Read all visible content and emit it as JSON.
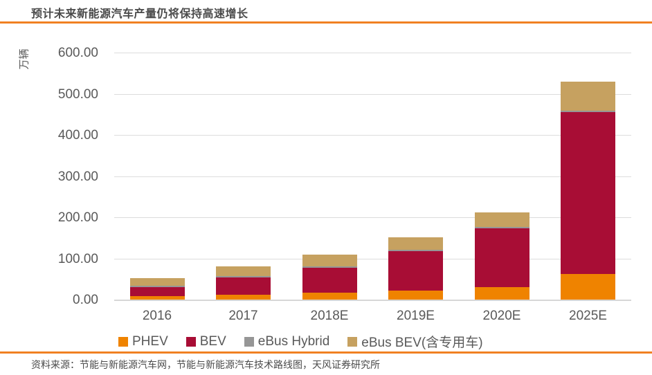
{
  "header": {
    "title": "预计未来新能源汽车产量仍将保持高速增长"
  },
  "footer": {
    "source": "资料来源：节能与新能源汽车网，节能与新能源汽车技术路线图，天风证券研究所"
  },
  "colors": {
    "accent_rule": "#f08122",
    "phev": "#ef8300",
    "bev": "#a80d35",
    "ebus_hybrid": "#969696",
    "ebus_bev": "#c6a160",
    "axis_text": "#595959",
    "gridline": "#dcdcdc"
  },
  "chart_data": {
    "type": "bar",
    "stacked": true,
    "title": "预计未来新能源汽车产量仍将保持高速增长",
    "ylabel": "万辆",
    "xlabel": "",
    "ylim": [
      0,
      600
    ],
    "ytick_step": 100,
    "ytick_labels": [
      "600.00",
      "500.00",
      "400.00",
      "300.00",
      "200.00",
      "100.00",
      "0.00"
    ],
    "grid": true,
    "legend_position": "bottom",
    "categories": [
      "2016",
      "2017",
      "2018E",
      "2019E",
      "2020E",
      "2025E"
    ],
    "series": [
      {
        "name": "PHEV",
        "color": "#ef8300",
        "values": [
          8,
          12,
          16,
          22,
          31,
          62
        ]
      },
      {
        "name": "BEV",
        "color": "#a80d35",
        "values": [
          22,
          41,
          62,
          95,
          142,
          394
        ]
      },
      {
        "name": "eBus Hybrid",
        "color": "#969696",
        "values": [
          3.5,
          3.5,
          3.5,
          3.5,
          3.5,
          3.5
        ]
      },
      {
        "name": "eBus BEV(含专用车)",
        "color": "#c6a160",
        "values": [
          18.5,
          23.5,
          28,
          31.5,
          35,
          70
        ]
      }
    ],
    "totals": [
      52,
      80,
      109.5,
      152,
      211.5,
      529.5
    ]
  }
}
